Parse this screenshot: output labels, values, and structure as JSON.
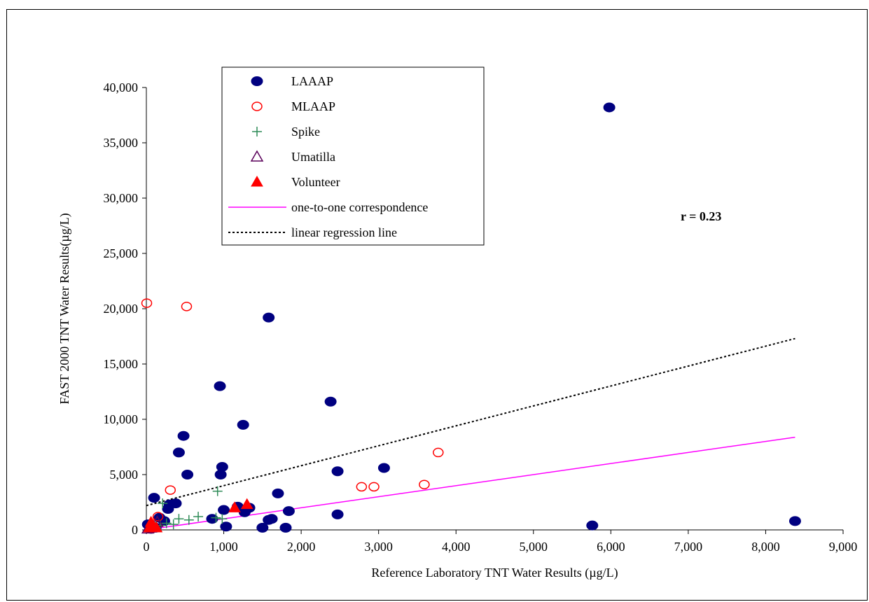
{
  "chart_data": {
    "type": "scatter",
    "xlabel": "Reference Laboratory TNT Water Results (µg/L)",
    "ylabel": "FAST 2000 TNT Water Results(µg/L)",
    "xlim": [
      0,
      9000
    ],
    "ylim": [
      0,
      40000
    ],
    "x_ticks": [
      "0",
      "1,000",
      "2,000",
      "3,000",
      "4,000",
      "5,000",
      "6,000",
      "7,000",
      "8,000",
      "9,000"
    ],
    "y_ticks": [
      "0",
      "5,000",
      "10,000",
      "15,000",
      "20,000",
      "25,000",
      "30,000",
      "35,000",
      "40,000"
    ],
    "annotation": "r = 0.23",
    "legend_position": "top-left",
    "grid": false,
    "series": [
      {
        "name": "LAAAP",
        "marker": "filled-ellipse",
        "color": "#000080",
        "points": [
          [
            5980,
            38200
          ],
          [
            1580,
            19200
          ],
          [
            950,
            13000
          ],
          [
            1250,
            9500
          ],
          [
            2380,
            11600
          ],
          [
            480,
            8500
          ],
          [
            420,
            7000
          ],
          [
            530,
            5000
          ],
          [
            980,
            5700
          ],
          [
            960,
            5000
          ],
          [
            2470,
            5300
          ],
          [
            3070,
            5600
          ],
          [
            1700,
            3300
          ],
          [
            100,
            2900
          ],
          [
            380,
            2400
          ],
          [
            300,
            2300
          ],
          [
            280,
            1900
          ],
          [
            1000,
            1800
          ],
          [
            1180,
            2100
          ],
          [
            1330,
            2000
          ],
          [
            1270,
            1600
          ],
          [
            1840,
            1700
          ],
          [
            2470,
            1400
          ],
          [
            850,
            1000
          ],
          [
            1580,
            900
          ],
          [
            1620,
            1000
          ],
          [
            170,
            1100
          ],
          [
            230,
            800
          ],
          [
            1030,
            300
          ],
          [
            1500,
            200
          ],
          [
            1800,
            200
          ],
          [
            5760,
            400
          ],
          [
            8380,
            800
          ],
          [
            20,
            500
          ],
          [
            120,
            200
          ],
          [
            60,
            100
          ]
        ]
      },
      {
        "name": "MLAAP",
        "marker": "open-circle",
        "color": "#ff0000",
        "points": [
          [
            5,
            20500
          ],
          [
            520,
            20200
          ],
          [
            310,
            3600
          ],
          [
            2780,
            3900
          ],
          [
            2940,
            3900
          ],
          [
            3590,
            4100
          ],
          [
            3770,
            7000
          ],
          [
            150,
            1200
          ]
        ]
      },
      {
        "name": "Spike",
        "marker": "plus",
        "color": "#2e8b57",
        "points": [
          [
            920,
            3500
          ],
          [
            210,
            2400
          ],
          [
            670,
            1200
          ],
          [
            420,
            1000
          ],
          [
            550,
            900
          ],
          [
            900,
            1100
          ],
          [
            980,
            1000
          ],
          [
            350,
            500
          ],
          [
            260,
            600
          ],
          [
            180,
            400
          ],
          [
            120,
            300
          ]
        ]
      },
      {
        "name": "Umatilla",
        "marker": "open-triangle",
        "color": "#5a005a",
        "points": [
          [
            20,
            100
          ],
          [
            80,
            300
          ],
          [
            140,
            700
          ],
          [
            60,
            500
          ]
        ]
      },
      {
        "name": "Volunteer",
        "marker": "filled-triangle",
        "color": "#ff0000",
        "points": [
          [
            1140,
            2000
          ],
          [
            1300,
            2300
          ],
          [
            40,
            200
          ],
          [
            90,
            400
          ],
          [
            130,
            200
          ],
          [
            60,
            700
          ]
        ]
      }
    ],
    "lines": [
      {
        "name": "one-to-one correspondence",
        "style": "solid",
        "color": "#ff00ff",
        "points": [
          [
            0,
            0
          ],
          [
            8380,
            8380
          ]
        ]
      },
      {
        "name": "linear regression line",
        "style": "dotted",
        "color": "#000000",
        "points": [
          [
            0,
            2200
          ],
          [
            8380,
            17300
          ]
        ]
      }
    ]
  }
}
